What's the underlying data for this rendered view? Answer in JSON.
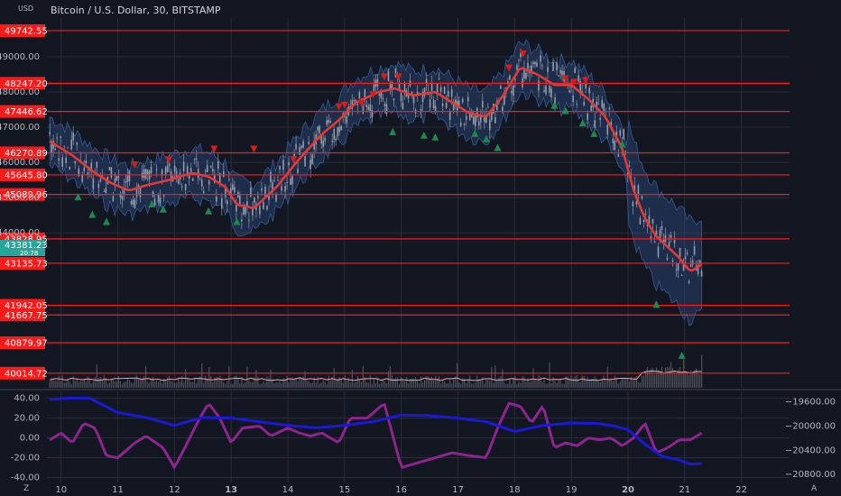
{
  "header": {
    "symbol_title": "Bitcoin / U.S. Dollar, 30, BITSTAMP",
    "currency": "USD",
    "axis_settings_icon": "gear-icon"
  },
  "colors": {
    "background": "#131722",
    "grid": "#2a2e39",
    "price_line": "#e53935",
    "level_line": "#ff1a1a",
    "band_fill": "#2c4a7a",
    "candle": "#9aa3b1",
    "arrow_up": "#1b8a4f",
    "arrow_down": "#d81b1b",
    "current_price_bg": "#26a69a",
    "osc_fast": "#8e248e",
    "osc_slow": "#1a1ad6",
    "volume_line": "#f3a1a1"
  },
  "chart_data": [
    {
      "type": "line",
      "title": "Bitcoin / U.S. Dollar, 30, BITSTAMP",
      "x_ticks": [
        "10",
        "11",
        "12",
        "13",
        "14",
        "15",
        "16",
        "17",
        "18",
        "19",
        "20",
        "21",
        "22"
      ],
      "x_tick_positions": [
        10,
        11,
        12,
        13,
        14,
        15,
        16,
        17,
        18,
        19,
        20,
        21,
        22
      ],
      "x_range": [
        9.75,
        22.85
      ],
      "y_ticks": [
        44000,
        45000,
        46000,
        47000,
        48000,
        49000
      ],
      "ylim": [
        39600,
        50100
      ],
      "grid": true,
      "current_price": "43381.23",
      "current_sub": "20:78",
      "levels": [
        "49742.55",
        "48247.20",
        "47446.62",
        "46270.89",
        "45645.80",
        "45089.96",
        "43828.95",
        "43135.73",
        "41942.05",
        "41667.75",
        "40879.97",
        "40014.72"
      ],
      "ma_series": {
        "name": "",
        "x": [
          9.8,
          10.2,
          10.6,
          10.9,
          11.2,
          11.5,
          11.9,
          12.3,
          12.6,
          12.9,
          13.1,
          13.4,
          13.8,
          14.2,
          14.6,
          14.9,
          15.2,
          15.6,
          15.9,
          16.2,
          16.6,
          16.9,
          17.2,
          17.5,
          17.8,
          18.1,
          18.4,
          18.7,
          19.0,
          19.3,
          19.6,
          19.9,
          20.1,
          20.3,
          20.5,
          20.7,
          20.9,
          21.1,
          21.3
        ],
        "y": [
          46600,
          46200,
          45700,
          45400,
          45200,
          45350,
          45500,
          45700,
          45600,
          45300,
          44800,
          44700,
          45300,
          46100,
          46800,
          47200,
          47700,
          48000,
          48100,
          47900,
          48000,
          47700,
          47400,
          47300,
          47900,
          48700,
          48500,
          48200,
          48200,
          47800,
          47300,
          46400,
          45200,
          44400,
          43900,
          43600,
          43300,
          42900,
          43100
        ]
      },
      "up_arrows": [
        {
          "x": 10.3,
          "y": 45000
        },
        {
          "x": 10.55,
          "y": 44500
        },
        {
          "x": 10.8,
          "y": 44300
        },
        {
          "x": 11.6,
          "y": 44800
        },
        {
          "x": 11.8,
          "y": 44650
        },
        {
          "x": 12.6,
          "y": 44600
        },
        {
          "x": 13.1,
          "y": 44300
        },
        {
          "x": 15.85,
          "y": 46850
        },
        {
          "x": 16.4,
          "y": 46750
        },
        {
          "x": 16.6,
          "y": 46700
        },
        {
          "x": 17.3,
          "y": 46800
        },
        {
          "x": 17.5,
          "y": 46650
        },
        {
          "x": 17.7,
          "y": 46400
        },
        {
          "x": 18.7,
          "y": 47600
        },
        {
          "x": 18.9,
          "y": 47450
        },
        {
          "x": 19.2,
          "y": 47100
        },
        {
          "x": 19.4,
          "y": 46800
        },
        {
          "x": 19.9,
          "y": 46500
        },
        {
          "x": 20.5,
          "y": 41950
        },
        {
          "x": 20.95,
          "y": 40500
        }
      ],
      "down_arrows": [
        {
          "x": 11.3,
          "y": 45950
        },
        {
          "x": 11.9,
          "y": 46100
        },
        {
          "x": 12.7,
          "y": 46400
        },
        {
          "x": 13.4,
          "y": 46400
        },
        {
          "x": 14.1,
          "y": 46100
        },
        {
          "x": 14.9,
          "y": 47600
        },
        {
          "x": 15.0,
          "y": 47650
        },
        {
          "x": 15.3,
          "y": 47700
        },
        {
          "x": 15.5,
          "y": 47950
        },
        {
          "x": 15.7,
          "y": 48450
        },
        {
          "x": 15.95,
          "y": 48450
        },
        {
          "x": 17.9,
          "y": 48700
        },
        {
          "x": 18.15,
          "y": 49100
        },
        {
          "x": 18.9,
          "y": 48400
        },
        {
          "x": 19.05,
          "y": 48300
        },
        {
          "x": 19.25,
          "y": 48350
        }
      ]
    },
    {
      "type": "line",
      "title": "",
      "y_ticks_left": [
        "40.00",
        "20.00",
        "0.00",
        "-20.00",
        "-40.00"
      ],
      "y_tick_values_left": [
        40,
        20,
        0,
        -20,
        -40
      ],
      "ylim_left": [
        -45,
        47
      ],
      "y_ticks_right": [
        "−19600.00",
        "−20000.00",
        "−20400.00",
        "−20800.00"
      ],
      "y_tick_values_right": [
        -19600,
        -20000,
        -20400,
        -20800
      ],
      "ylim_right": [
        -20930,
        -19430
      ],
      "series": [
        {
          "name": "",
          "axis": "left",
          "x": [
            9.8,
            10.0,
            10.2,
            10.4,
            10.6,
            10.8,
            11.0,
            11.3,
            11.5,
            11.8,
            12.0,
            12.2,
            12.4,
            12.6,
            12.8,
            13.0,
            13.2,
            13.5,
            13.7,
            14.0,
            14.2,
            14.4,
            14.6,
            14.9,
            15.1,
            15.4,
            15.7,
            16.0,
            16.3,
            16.6,
            16.9,
            17.2,
            17.5,
            17.7,
            17.9,
            18.1,
            18.3,
            18.5,
            18.7,
            18.9,
            19.1,
            19.3,
            19.5,
            19.7,
            19.9,
            20.1,
            20.3,
            20.5,
            20.7,
            20.9,
            21.1,
            21.3
          ],
          "y": [
            -2,
            5,
            -5,
            15,
            10,
            -18,
            -20,
            -5,
            2,
            -10,
            -30,
            -8,
            15,
            35,
            20,
            -5,
            10,
            12,
            2,
            10,
            5,
            2,
            5,
            -5,
            20,
            20,
            35,
            -30,
            -25,
            -20,
            -15,
            -18,
            -20,
            10,
            35,
            32,
            15,
            33,
            -10,
            -5,
            -8,
            0,
            -2,
            0,
            -8,
            0,
            15,
            -15,
            -10,
            -2,
            -2,
            5
          ]
        },
        {
          "name": "",
          "axis": "right",
          "x": [
            9.8,
            10.2,
            10.5,
            11.0,
            11.5,
            12.0,
            12.5,
            13.0,
            13.5,
            14.0,
            14.5,
            15.0,
            15.5,
            16.0,
            16.5,
            17.0,
            17.5,
            18.0,
            18.5,
            19.0,
            19.5,
            19.8,
            20.0,
            20.3,
            20.6,
            20.9,
            21.1,
            21.3
          ],
          "y": [
            -19560,
            -19540,
            -19540,
            -19780,
            -19860,
            -19990,
            -19860,
            -19870,
            -19930,
            -19990,
            -20030,
            -19990,
            -19930,
            -19820,
            -19830,
            -19870,
            -19930,
            -20090,
            -19990,
            -19950,
            -19960,
            -20010,
            -20060,
            -20300,
            -20500,
            -20560,
            -20630,
            -20620
          ]
        }
      ]
    }
  ]
}
